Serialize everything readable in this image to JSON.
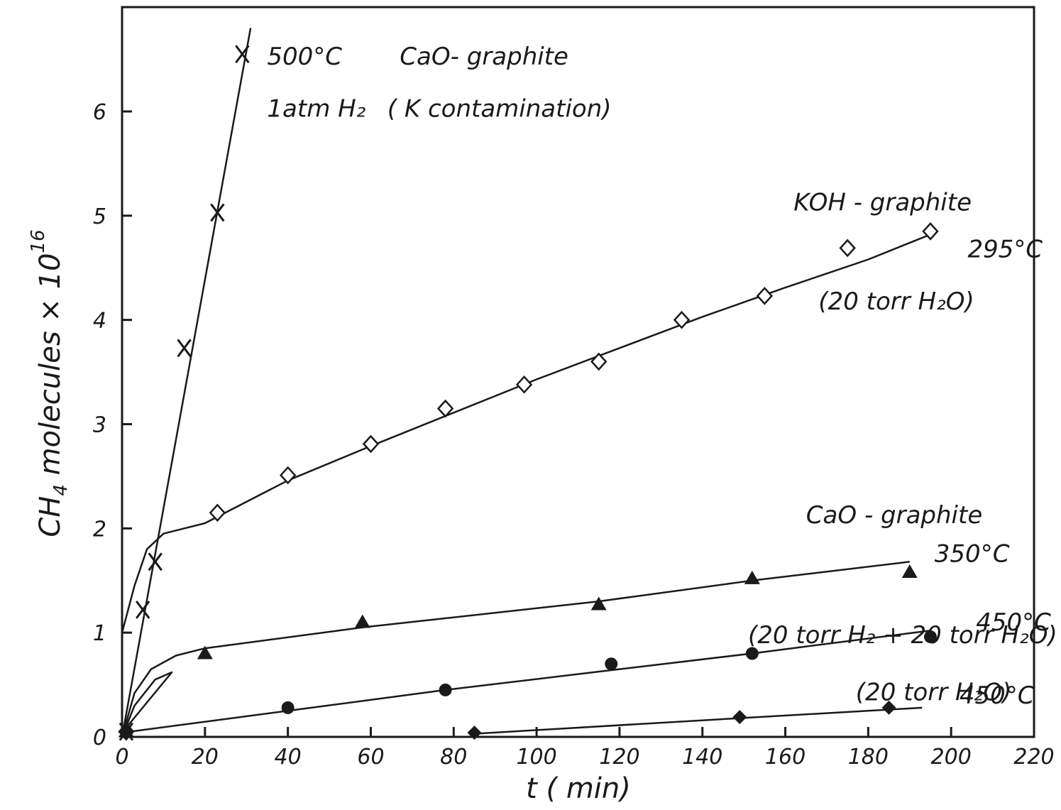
{
  "chart_data": {
    "type": "scatter",
    "title": "",
    "xlabel": "t ( min)",
    "ylabel_main": "CH",
    "ylabel_sub": "4",
    "ylabel_rest": " molecules × 10",
    "ylabel_exp": "16",
    "xlim": [
      0,
      220
    ],
    "ylim": [
      0,
      6.8
    ],
    "grid": false,
    "x_ticks": [
      0,
      20,
      40,
      60,
      80,
      100,
      120,
      140,
      160,
      180,
      200,
      220
    ],
    "x_tick_labels": [
      "0",
      "20",
      "40",
      "60",
      "80",
      "100",
      "120",
      "140",
      "160",
      "180",
      "200",
      "220"
    ],
    "y_ticks": [
      0,
      1,
      2,
      3,
      4,
      5,
      6
    ],
    "y_tick_labels": [
      "0",
      "1",
      "2",
      "3",
      "4",
      "5",
      "6"
    ],
    "series": [
      {
        "marker": "x",
        "x": [
          1,
          5,
          8,
          15,
          23,
          29
        ],
        "y": [
          0.05,
          1.22,
          1.68,
          3.73,
          5.03,
          6.55
        ],
        "fit": [
          [
            0,
            0
          ],
          [
            31,
            6.8
          ]
        ]
      },
      {
        "marker": "diamond-open",
        "x": [
          1,
          23,
          40,
          60,
          78,
          97,
          115,
          135,
          155,
          175,
          195
        ],
        "y": [
          0.05,
          2.15,
          2.51,
          2.81,
          3.15,
          3.38,
          3.6,
          4.0,
          4.23,
          4.69,
          4.85
        ],
        "fit": [
          [
            0,
            1.0
          ],
          [
            3,
            1.45
          ],
          [
            6,
            1.8
          ],
          [
            10,
            1.95
          ],
          [
            20,
            2.05
          ],
          [
            40,
            2.46
          ],
          [
            60,
            2.79
          ],
          [
            80,
            3.11
          ],
          [
            100,
            3.43
          ],
          [
            120,
            3.73
          ],
          [
            140,
            4.03
          ],
          [
            160,
            4.31
          ],
          [
            180,
            4.58
          ],
          [
            195,
            4.82
          ]
        ]
      },
      {
        "marker": "triangle-filled",
        "x": [
          1,
          20,
          58,
          115,
          152,
          190
        ],
        "y": [
          0.05,
          0.8,
          1.1,
          1.27,
          1.52,
          1.58
        ],
        "fit": [
          [
            0,
            0
          ],
          [
            3,
            0.42
          ],
          [
            7,
            0.65
          ],
          [
            13,
            0.78
          ],
          [
            20,
            0.85
          ],
          [
            58,
            1.05
          ],
          [
            115,
            1.3
          ],
          [
            152,
            1.5
          ],
          [
            190,
            1.68
          ]
        ]
      },
      {
        "marker": "circle-filled",
        "x": [
          1,
          40,
          78,
          118,
          152,
          195
        ],
        "y": [
          0.05,
          0.28,
          0.45,
          0.7,
          0.8,
          0.96
        ],
        "fit": [
          [
            0,
            0
          ],
          [
            3,
            0.3
          ],
          [
            8,
            0.55
          ],
          [
            12,
            0.62
          ],
          [
            0,
            0.04
          ],
          [
            40,
            0.25
          ],
          [
            78,
            0.45
          ],
          [
            118,
            0.64
          ],
          [
            152,
            0.8
          ],
          [
            195,
            1.02
          ]
        ]
      },
      {
        "marker": "diamond-filled",
        "x": [
          85,
          149,
          185
        ],
        "y": [
          0.04,
          0.19,
          0.28
        ],
        "fit": [
          [
            85,
            0.03
          ],
          [
            149,
            0.18
          ],
          [
            193,
            0.28
          ]
        ]
      }
    ],
    "annotations": [
      {
        "text": "500°C",
        "x": 35,
        "y": 6.45
      },
      {
        "text": "1atm H₂",
        "x": 35,
        "y": 5.95
      },
      {
        "text": "CaO- graphite",
        "x": 67,
        "y": 6.45
      },
      {
        "text": "( K contamination)",
        "x": 64,
        "y": 5.95
      },
      {
        "text": "KOH - graphite",
        "x": 162,
        "y": 5.05
      },
      {
        "text": "295°C",
        "x": 204,
        "y": 4.6
      },
      {
        "text": "(20 torr H₂O)",
        "x": 168,
        "y": 4.1
      },
      {
        "text": "CaO - graphite",
        "x": 165,
        "y": 2.05
      },
      {
        "text": "350°C",
        "x": 196,
        "y": 1.68
      },
      {
        "text": "(20 torr H₂ + 20 torr H₂O)",
        "x": 151,
        "y": 0.9
      },
      {
        "text": "450°C",
        "x": 206,
        "y": 1.02
      },
      {
        "text": "(20 torr H₂O)",
        "x": 177,
        "y": 0.35
      },
      {
        "text": "450°C",
        "x": 202,
        "y": 0.32
      }
    ]
  }
}
